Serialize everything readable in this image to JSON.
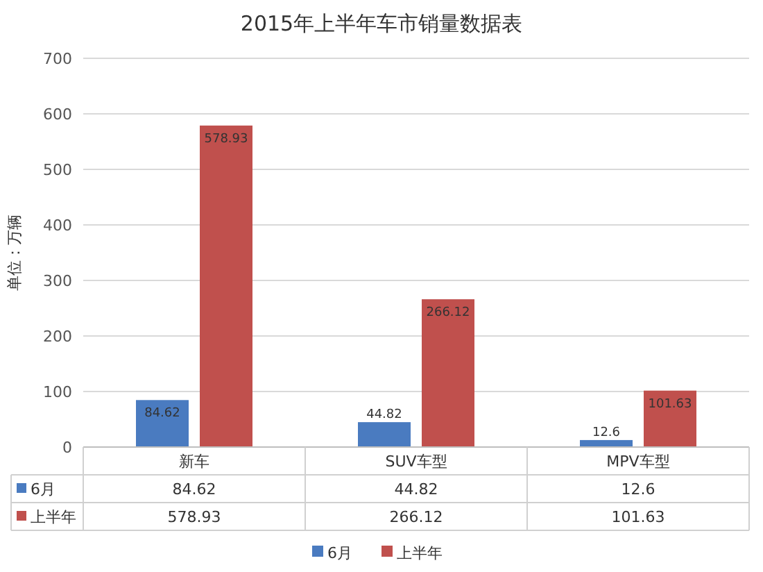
{
  "chart_data": {
    "type": "bar",
    "title": "2015年上半年车市销量数据表",
    "ylabel": "单位：万辆",
    "categories": [
      "新车",
      "SUV车型",
      "MPV车型"
    ],
    "series": [
      {
        "name": "6月",
        "color": "#4a7bc0",
        "values": [
          84.62,
          44.82,
          12.6
        ],
        "value_labels": [
          "84.62",
          "44.82",
          "12.6"
        ]
      },
      {
        "name": "上半年",
        "color": "#c0504d",
        "values": [
          578.93,
          266.12,
          101.63
        ],
        "value_labels": [
          "578.93",
          "266.12",
          "101.63"
        ]
      }
    ],
    "ylim": [
      0,
      700
    ],
    "yticks": [
      0,
      100,
      200,
      300,
      400,
      500,
      600,
      700
    ],
    "grid": "y",
    "legend": "bottom",
    "data_labels": true
  }
}
